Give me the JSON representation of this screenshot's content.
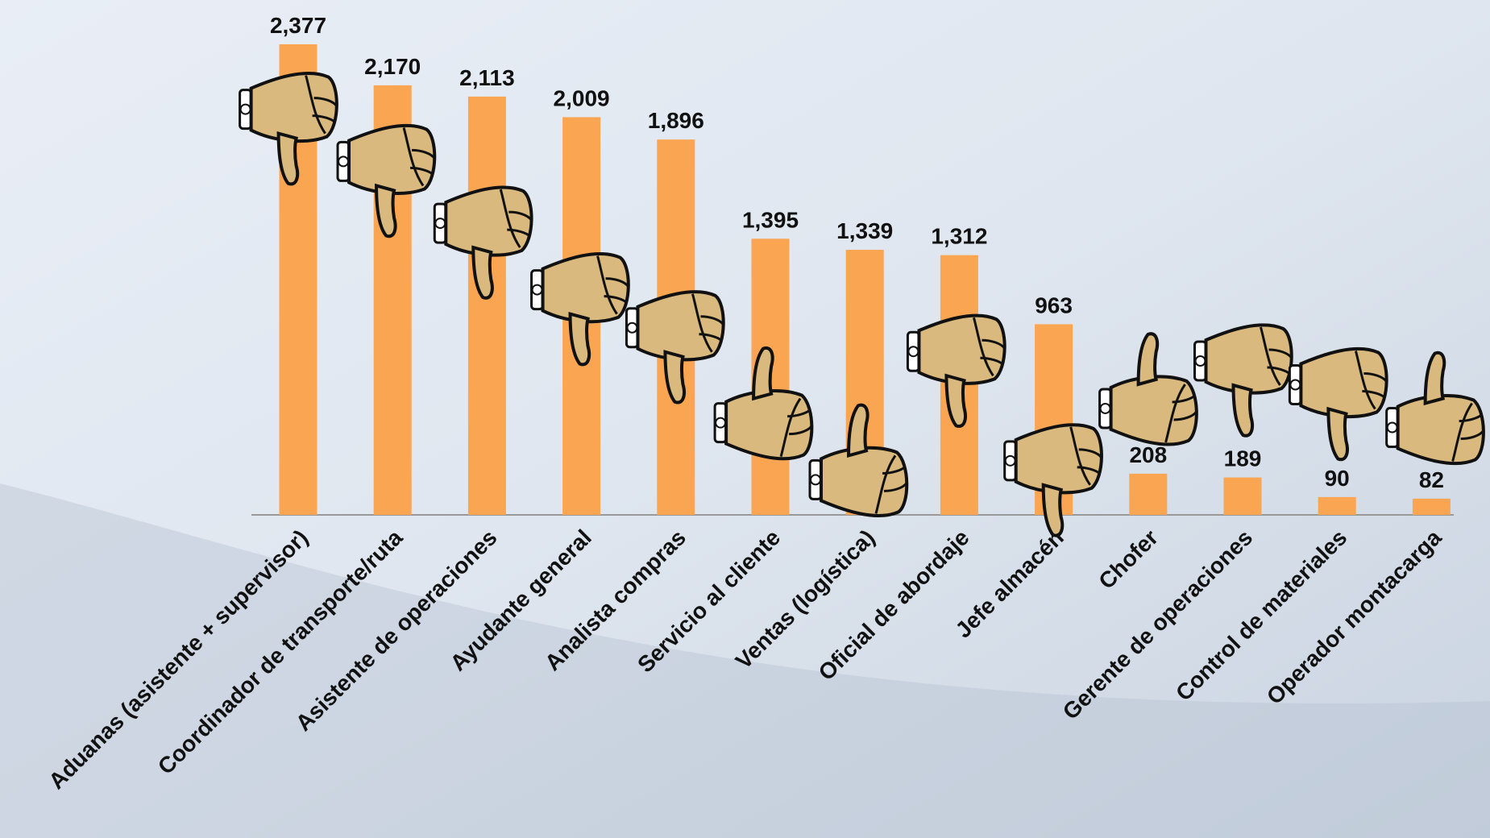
{
  "chart_data": {
    "type": "bar",
    "categories": [
      "Aduanas (asistente + supervisor)",
      "Coordinador de transporte/ruta",
      "Asistente de operaciones",
      "Ayudante general",
      "Analista compras",
      "Servicio al cliente",
      "Ventas (logística)",
      "Oficial de abordaje",
      "Jefe almacén",
      "Chofer",
      "Gerente de operaciones",
      "Control de materiales",
      "Operador  montacarga"
    ],
    "values": [
      2377,
      2170,
      2113,
      2009,
      1896,
      1395,
      1339,
      1312,
      963,
      208,
      189,
      90,
      82
    ],
    "value_labels": [
      "2,377",
      "2,170",
      "2,113",
      "2,009",
      "1,896",
      "1,395",
      "1,339",
      "1,312",
      "963",
      "208",
      "189",
      "90",
      "82"
    ],
    "color": "#f9a552"
  }
}
